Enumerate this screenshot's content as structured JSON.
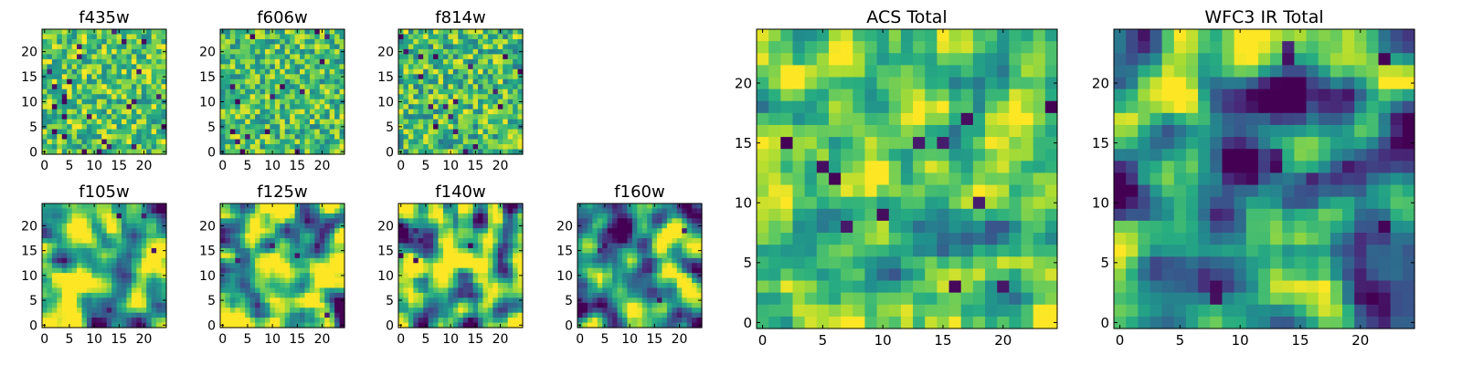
{
  "chart_data": [
    {
      "type": "heatmap",
      "title": "f435w",
      "xlim": [
        0,
        25
      ],
      "ylim": [
        0,
        25
      ],
      "xticks": [
        "0",
        "5",
        "10",
        "15",
        "20"
      ],
      "yticks": [
        "0",
        "5",
        "10",
        "15",
        "20"
      ],
      "colormap": "viridis",
      "grid": false,
      "seed": 11,
      "smooth": 0,
      "mean": 0.72,
      "spread": 0.16,
      "dark_holes": 26
    },
    {
      "type": "heatmap",
      "title": "f606w",
      "xlim": [
        0,
        25
      ],
      "ylim": [
        0,
        25
      ],
      "xticks": [
        "0",
        "5",
        "10",
        "15",
        "20"
      ],
      "yticks": [
        "0",
        "5",
        "10",
        "15",
        "20"
      ],
      "colormap": "viridis",
      "grid": false,
      "seed": 23,
      "smooth": 0,
      "mean": 0.7,
      "spread": 0.16,
      "dark_holes": 16
    },
    {
      "type": "heatmap",
      "title": "f814w",
      "xlim": [
        0,
        25
      ],
      "ylim": [
        0,
        25
      ],
      "xticks": [
        "0",
        "5",
        "10",
        "15",
        "20"
      ],
      "yticks": [
        "0",
        "5",
        "10",
        "15",
        "20"
      ],
      "colormap": "viridis",
      "grid": false,
      "seed": 37,
      "smooth": 0,
      "mean": 0.7,
      "spread": 0.17,
      "dark_holes": 18
    },
    {
      "type": "heatmap",
      "title": "f105w",
      "xlim": [
        0,
        25
      ],
      "ylim": [
        0,
        25
      ],
      "xticks": [
        "0",
        "5",
        "10",
        "15",
        "20"
      ],
      "yticks": [
        "0",
        "5",
        "10",
        "15",
        "20"
      ],
      "colormap": "viridis",
      "grid": false,
      "seed": 41,
      "smooth": 2,
      "mean": 0.68,
      "spread": 0.3,
      "dark_holes": 5
    },
    {
      "type": "heatmap",
      "title": "f125w",
      "xlim": [
        0,
        25
      ],
      "ylim": [
        0,
        25
      ],
      "xticks": [
        "0",
        "5",
        "10",
        "15",
        "20"
      ],
      "yticks": [
        "0",
        "5",
        "10",
        "15",
        "20"
      ],
      "colormap": "viridis",
      "grid": false,
      "seed": 53,
      "smooth": 2,
      "mean": 0.68,
      "spread": 0.32,
      "dark_holes": 5
    },
    {
      "type": "heatmap",
      "title": "f140w",
      "xlim": [
        0,
        25
      ],
      "ylim": [
        0,
        25
      ],
      "xticks": [
        "0",
        "5",
        "10",
        "15",
        "20"
      ],
      "yticks": [
        "0",
        "5",
        "10",
        "15",
        "20"
      ],
      "colormap": "viridis",
      "grid": false,
      "seed": 67,
      "smooth": 2,
      "mean": 0.66,
      "spread": 0.32,
      "dark_holes": 5
    },
    {
      "type": "heatmap",
      "title": "f160w",
      "xlim": [
        0,
        25
      ],
      "ylim": [
        0,
        25
      ],
      "xticks": [
        "0",
        "5",
        "10",
        "15",
        "20"
      ],
      "yticks": [
        "0",
        "5",
        "10",
        "15",
        "20"
      ],
      "colormap": "viridis",
      "grid": false,
      "seed": 79,
      "smooth": 2,
      "mean": 0.52,
      "spread": 0.3,
      "dark_holes": 4
    },
    {
      "type": "heatmap",
      "title": "ACS Total",
      "xlim": [
        0,
        25
      ],
      "ylim": [
        0,
        25
      ],
      "xticks": [
        "0",
        "5",
        "10",
        "15",
        "20"
      ],
      "yticks": [
        "0",
        "5",
        "10",
        "15",
        "20"
      ],
      "colormap": "viridis",
      "grid": false,
      "seed": 97,
      "smooth": 1,
      "mean": 0.72,
      "spread": 0.16,
      "dark_holes": 12
    },
    {
      "type": "heatmap",
      "title": "WFC3 IR Total",
      "xlim": [
        0,
        25
      ],
      "ylim": [
        0,
        25
      ],
      "xticks": [
        "0",
        "5",
        "10",
        "15",
        "20"
      ],
      "yticks": [
        "0",
        "5",
        "10",
        "15",
        "20"
      ],
      "colormap": "viridis",
      "grid": false,
      "seed": 131,
      "smooth": 2,
      "mean": 0.45,
      "spread": 0.26,
      "dark_holes": 10,
      "bright_top_right": true
    }
  ]
}
